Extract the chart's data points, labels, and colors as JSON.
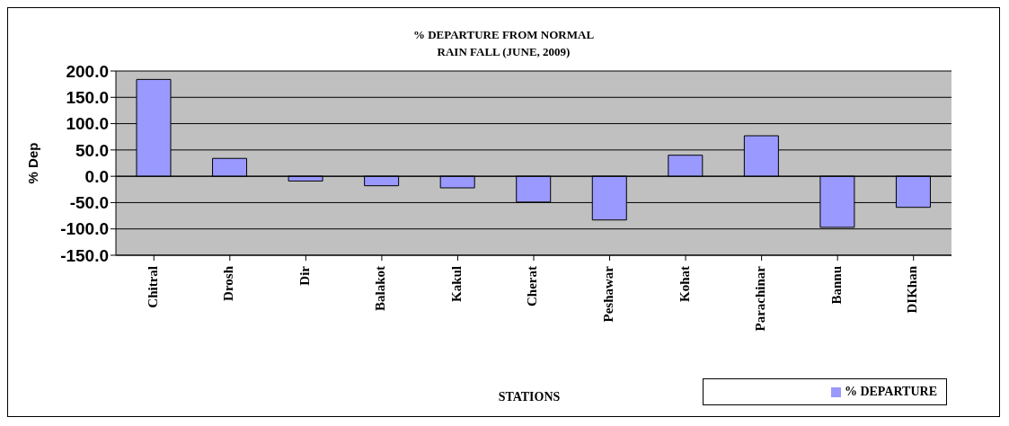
{
  "chart_data": {
    "type": "bar",
    "title": "% DEPARTURE FROM NORMAL\nRAIN FALL (JUNE, 2009)",
    "xlabel": "STATIONS",
    "ylabel": "% Dep",
    "categories": [
      "Chitral",
      "Drosh",
      "Dir",
      "Balakot",
      "Kakul",
      "Cherat",
      "Peshawar",
      "Kohat",
      "Parachinar",
      "Bannu",
      "DIKhan"
    ],
    "series": [
      {
        "name": "% DEPARTURE",
        "color": "#9999ff",
        "values": [
          184,
          34,
          -9,
          -18,
          -22,
          -49,
          -83,
          40,
          77,
          -97,
          -59
        ]
      }
    ],
    "ylim": [
      -150,
      200
    ],
    "yticks": [
      {
        "value": -150,
        "label": "-150.0"
      },
      {
        "value": -100,
        "label": "-100.0"
      },
      {
        "value": -50,
        "label": "-50.0"
      },
      {
        "value": 0,
        "label": "0.0"
      },
      {
        "value": 50,
        "label": "50.0"
      },
      {
        "value": 100,
        "label": "100.0"
      },
      {
        "value": 150,
        "label": "150.0"
      },
      {
        "value": 200,
        "label": "200.0"
      }
    ],
    "grid": "y",
    "legend": "bottom right"
  }
}
